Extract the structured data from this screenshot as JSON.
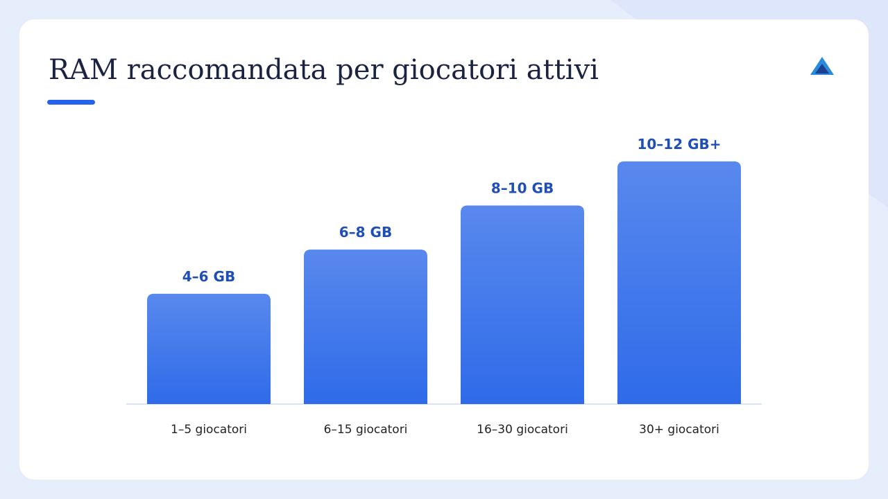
{
  "chart_data": {
    "type": "bar",
    "title": "RAM raccomandata per giocatori attivi",
    "categories": [
      "1–5 giocatori",
      "6–15 giocatori",
      "16–30 giocatori",
      "30+ giocatori"
    ],
    "values": [
      5,
      7,
      9,
      11
    ],
    "value_labels": [
      "4–6 GB",
      "6–8 GB",
      "8–10 GB",
      "10–12 GB+"
    ],
    "color": "#2f6be9",
    "ylim": [
      0,
      12
    ]
  }
}
